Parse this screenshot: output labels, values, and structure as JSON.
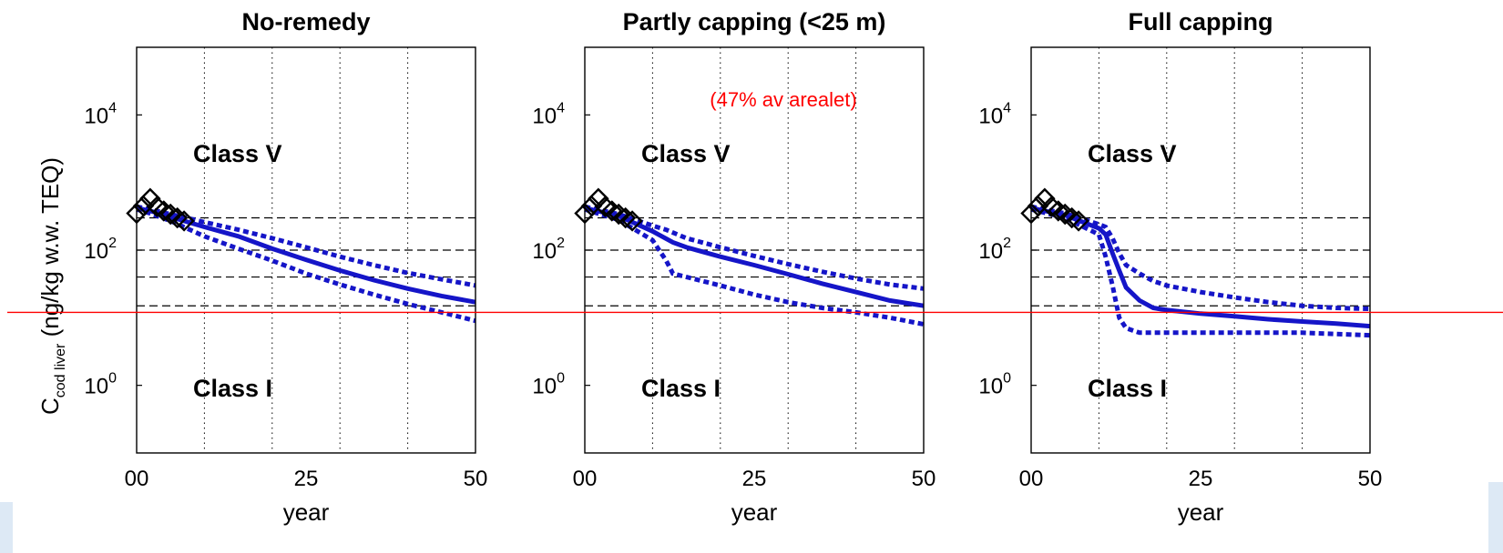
{
  "ylabel": {
    "main": "C",
    "sub": "cod liver",
    "rest": " (ng/kg w.w. TEQ)"
  },
  "xlabel": "year",
  "y_ticks": [
    {
      "base": "10",
      "exp": "0",
      "value": 1
    },
    {
      "base": "10",
      "exp": "2",
      "value": 100
    },
    {
      "base": "10",
      "exp": "4",
      "value": 10000
    }
  ],
  "x_ticks": [
    "00",
    "25",
    "50"
  ],
  "class_labels": {
    "upper": "Class V",
    "lower": "Class I"
  },
  "annotation": {
    "text": "(47% av arealet)",
    "color": "#ff0000",
    "panel": 1
  },
  "colors": {
    "model": "#1515c8",
    "threshold_line": "#ff0000",
    "observations": "#000000"
  },
  "chart_data": [
    {
      "type": "line",
      "title": "No-remedy",
      "xlabel": "year",
      "ylabel": "C cod liver (ng/kg w.w. TEQ)",
      "x_range": [
        0,
        50
      ],
      "y_range": [
        0.1,
        100000
      ],
      "y_scale": "log",
      "x_grid": [
        10,
        20,
        30,
        40
      ],
      "class_boundaries": [
        15,
        40,
        100,
        300
      ],
      "threshold": 12,
      "observations": {
        "x": [
          0,
          1,
          2,
          3,
          4,
          5,
          6,
          7
        ],
        "y": [
          350,
          450,
          580,
          440,
          380,
          340,
          300,
          270
        ]
      },
      "series": [
        {
          "role": "median",
          "x": [
            0,
            2,
            5,
            10,
            15,
            20,
            25,
            30,
            35,
            40,
            45,
            50
          ],
          "y": [
            420,
            380,
            310,
            220,
            160,
            105,
            72,
            50,
            36,
            27,
            21,
            17
          ]
        },
        {
          "role": "upper",
          "x": [
            0,
            2,
            5,
            10,
            15,
            20,
            25,
            30,
            35,
            40,
            45,
            50
          ],
          "y": [
            440,
            400,
            340,
            260,
            200,
            150,
            110,
            80,
            60,
            46,
            37,
            30
          ]
        },
        {
          "role": "lower",
          "x": [
            0,
            2,
            5,
            10,
            15,
            20,
            25,
            30,
            35,
            40,
            45,
            50
          ],
          "y": [
            400,
            350,
            270,
            160,
            105,
            70,
            45,
            31,
            22,
            16,
            12,
            9
          ]
        }
      ]
    },
    {
      "type": "line",
      "title": "Partly capping (<25 m)",
      "xlabel": "year",
      "ylabel": "",
      "x_range": [
        0,
        50
      ],
      "y_range": [
        0.1,
        100000
      ],
      "y_scale": "log",
      "x_grid": [
        10,
        20,
        30,
        40
      ],
      "class_boundaries": [
        15,
        40,
        100,
        300
      ],
      "threshold": 12,
      "observations": {
        "x": [
          0,
          1,
          2,
          3,
          4,
          5,
          6,
          7
        ],
        "y": [
          350,
          450,
          580,
          440,
          380,
          340,
          300,
          270
        ]
      },
      "series": [
        {
          "role": "median",
          "x": [
            0,
            5,
            10,
            13,
            15,
            20,
            25,
            30,
            35,
            40,
            45,
            50
          ],
          "y": [
            420,
            320,
            190,
            130,
            110,
            80,
            60,
            44,
            32,
            24,
            18,
            15
          ]
        },
        {
          "role": "upper",
          "x": [
            0,
            5,
            10,
            12,
            15,
            20,
            25,
            30,
            35,
            40,
            45,
            50
          ],
          "y": [
            440,
            340,
            230,
            200,
            150,
            110,
            82,
            62,
            48,
            38,
            31,
            27
          ]
        },
        {
          "role": "lower",
          "x": [
            0,
            5,
            10,
            12,
            13,
            15,
            20,
            25,
            30,
            35,
            40,
            45,
            50
          ],
          "y": [
            400,
            280,
            140,
            70,
            45,
            40,
            30,
            22,
            17,
            14,
            12,
            10,
            8
          ]
        }
      ]
    },
    {
      "type": "line",
      "title": "Full capping",
      "xlabel": "year",
      "ylabel": "",
      "x_range": [
        0,
        50
      ],
      "y_range": [
        0.1,
        100000
      ],
      "y_scale": "log",
      "x_grid": [
        10,
        20,
        30,
        40
      ],
      "class_boundaries": [
        15,
        40,
        100,
        300
      ],
      "threshold": 12,
      "observations": {
        "x": [
          0,
          1,
          2,
          3,
          4,
          5,
          6,
          7
        ],
        "y": [
          350,
          450,
          580,
          440,
          380,
          340,
          300,
          270
        ]
      },
      "series": [
        {
          "role": "median",
          "x": [
            0,
            5,
            10,
            11,
            12,
            13,
            14,
            16,
            18,
            20,
            25,
            30,
            35,
            40,
            45,
            50
          ],
          "y": [
            420,
            330,
            210,
            170,
            90,
            50,
            28,
            18,
            14,
            13,
            11.5,
            10.5,
            9.5,
            8.8,
            8.2,
            7.5
          ]
        },
        {
          "role": "upper",
          "x": [
            0,
            5,
            10,
            11,
            12,
            13,
            14,
            16,
            18,
            20,
            25,
            30,
            35,
            40,
            45,
            50
          ],
          "y": [
            440,
            350,
            240,
            220,
            150,
            90,
            60,
            45,
            35,
            30,
            24,
            20,
            17,
            15,
            14,
            13.5
          ]
        },
        {
          "role": "lower",
          "x": [
            0,
            5,
            10,
            11,
            12,
            13,
            14,
            16,
            20,
            25,
            30,
            40,
            50
          ],
          "y": [
            400,
            300,
            170,
            80,
            30,
            10,
            7,
            6,
            6,
            6,
            6,
            6,
            5.5
          ]
        }
      ]
    }
  ]
}
